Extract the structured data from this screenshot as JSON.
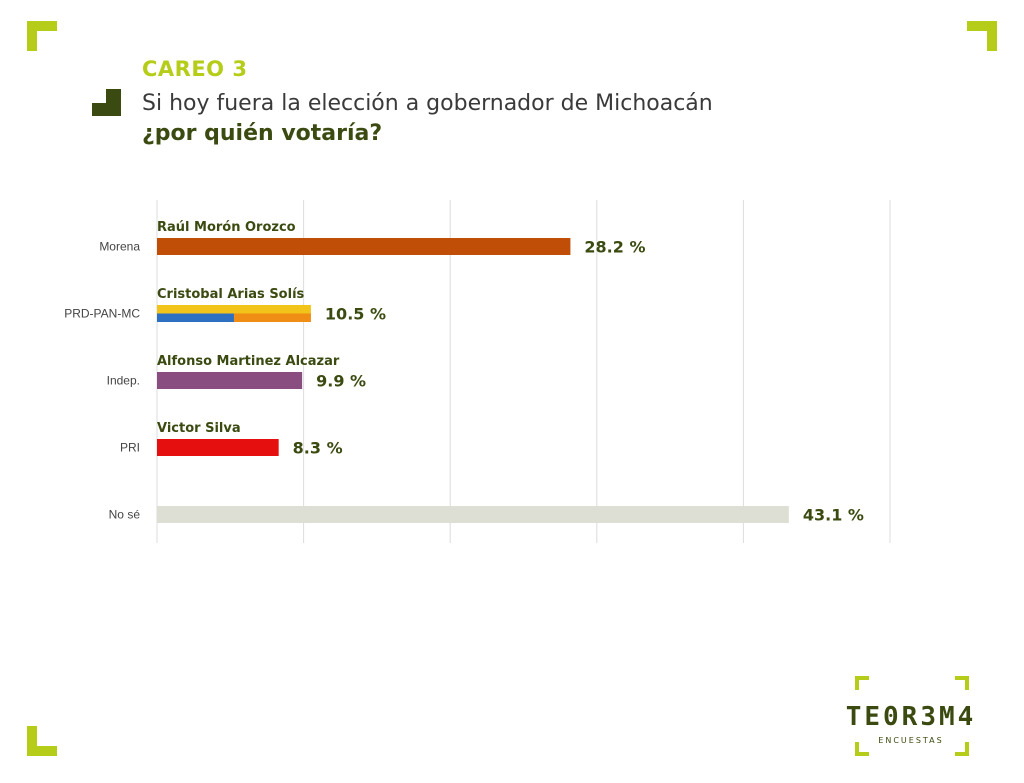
{
  "colors": {
    "accent": "#b5cc18",
    "dark": "#3a4a10",
    "grid": "#dcdcdc",
    "axis_text": "#444444"
  },
  "header": {
    "section": "CAREO 3",
    "question_line1": "Si hoy fuera la elección a gobernador de Michoacán",
    "question_line2": "¿por quién votaría?"
  },
  "logo": {
    "name": "TE0R3M4",
    "sub": "ENCUESTAS"
  },
  "chart_data": {
    "type": "bar",
    "orientation": "horizontal",
    "categories": [
      "Morena",
      "PRD-PAN-MC",
      "Indep.",
      "PRI",
      "No sé"
    ],
    "candidates": [
      "Raúl Morón Orozco",
      "Cristobal Arias Solís",
      "Alfonso Martinez Alcazar",
      "Victor Silva",
      ""
    ],
    "values": [
      28.2,
      10.5,
      9.9,
      8.3,
      43.1
    ],
    "value_labels": [
      "28.2 %",
      "10.5 %",
      "9.9 %",
      "8.3 %",
      "43.1 %"
    ],
    "bar_colors": [
      "#c04e06",
      "multi",
      "#8a4d80",
      "#e50f0f",
      "#dddfd4"
    ],
    "coalition_colors": [
      "#f2c41a",
      "#2d6fc1",
      "#f08d14"
    ],
    "xlim": [
      0,
      50
    ],
    "grid": true
  }
}
